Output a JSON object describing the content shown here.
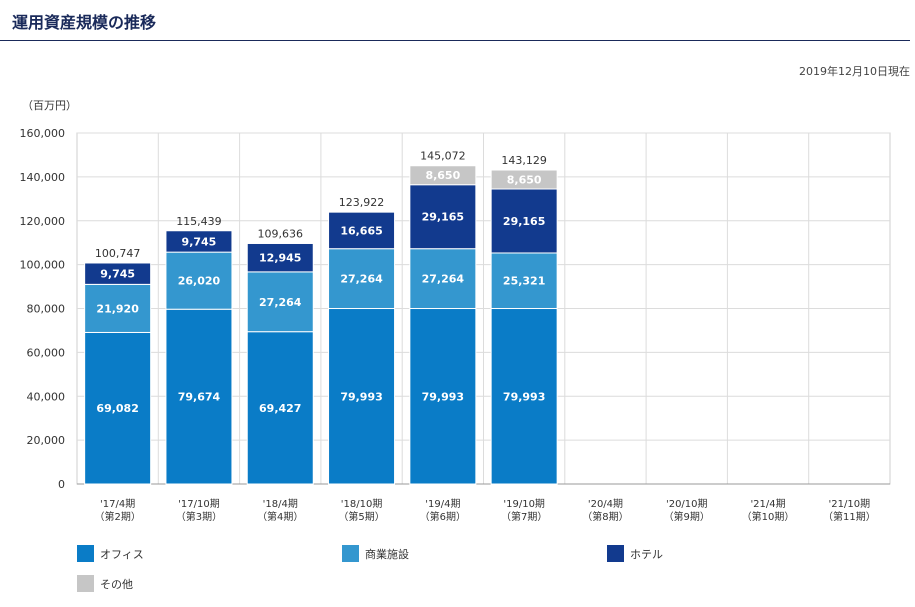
{
  "header": {
    "title": "運用資産規模の推移",
    "as_of": "2019年12月10日現在"
  },
  "chart_data": {
    "type": "bar",
    "stacked": true,
    "unit_label": "（百万円）",
    "ylim": [
      0,
      160000
    ],
    "yticks": [
      0,
      20000,
      40000,
      60000,
      80000,
      100000,
      120000,
      140000,
      160000
    ],
    "ytick_labels": [
      "0",
      "20,000",
      "40,000",
      "60,000",
      "80,000",
      "100,000",
      "120,000",
      "140,000",
      "160,000"
    ],
    "grid": true,
    "legend_position": "bottom",
    "categories": [
      [
        "'17/4期",
        "（第2期）"
      ],
      [
        "'17/10期",
        "（第3期）"
      ],
      [
        "'18/4期",
        "（第4期）"
      ],
      [
        "'18/10期",
        "（第5期）"
      ],
      [
        "'19/4期",
        "（第6期）"
      ],
      [
        "'19/10期",
        "（第7期）"
      ],
      [
        "'20/4期",
        "（第8期）"
      ],
      [
        "'20/10期",
        "（第9期）"
      ],
      [
        "'21/4期",
        "（第10期）"
      ],
      [
        "'21/10期",
        "（第11期）"
      ]
    ],
    "series": [
      {
        "name": "オフィス",
        "color": "#0a7cc7",
        "values": [
          69082,
          79674,
          69427,
          79993,
          79993,
          79993,
          null,
          null,
          null,
          null
        ],
        "labels": [
          "69,082",
          "79,674",
          "69,427",
          "79,993",
          "79,993",
          "79,993",
          "",
          "",
          "",
          ""
        ]
      },
      {
        "name": "商業施設",
        "color": "#3497cf",
        "values": [
          21920,
          26020,
          27264,
          27264,
          27264,
          25321,
          null,
          null,
          null,
          null
        ],
        "labels": [
          "21,920",
          "26,020",
          "27,264",
          "27,264",
          "27,264",
          "25,321",
          "",
          "",
          "",
          ""
        ]
      },
      {
        "name": "ホテル",
        "color": "#123a8e",
        "values": [
          9745,
          9745,
          12945,
          16665,
          29165,
          29165,
          null,
          null,
          null,
          null
        ],
        "labels": [
          "9,745",
          "9,745",
          "12,945",
          "16,665",
          "29,165",
          "29,165",
          "",
          "",
          "",
          ""
        ]
      },
      {
        "name": "その他",
        "color": "#c6c6c6",
        "values": [
          0,
          0,
          0,
          0,
          8650,
          8650,
          null,
          null,
          null,
          null
        ],
        "labels": [
          "",
          "",
          "",
          "",
          "8,650",
          "8,650",
          "",
          "",
          "",
          ""
        ]
      }
    ],
    "totals": [
      100747,
      115439,
      109636,
      123922,
      145072,
      143129,
      null,
      null,
      null,
      null
    ],
    "total_labels": [
      "100,747",
      "115,439",
      "109,636",
      "123,922",
      "145,072",
      "143,129",
      "",
      "",
      "",
      ""
    ]
  }
}
